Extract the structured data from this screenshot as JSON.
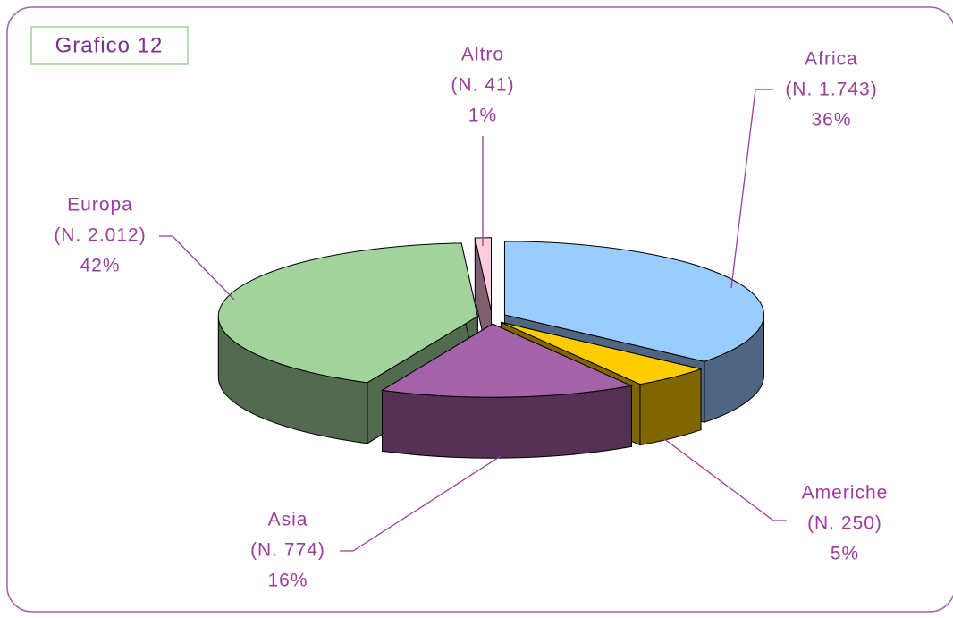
{
  "chart_data": {
    "type": "pie3d",
    "title": "Grafico 12",
    "categories": [
      "Africa",
      "Americhe",
      "Asia",
      "Europa",
      "Altro"
    ],
    "values": [
      36,
      5,
      16,
      42,
      1
    ],
    "value_labels": [
      "36%",
      "5%",
      "16%",
      "42%",
      "1%"
    ],
    "counts": [
      1743,
      250,
      774,
      2012,
      41
    ],
    "count_labels": [
      "(N. 1.743)",
      "(N. 250)",
      "(N. 774)",
      "(N. 2.012)",
      "(N. 41)"
    ],
    "colors": [
      "#99ccff",
      "#ffcc00",
      "#a463a8",
      "#a3d39c",
      "#ffccdd"
    ],
    "side_colors": [
      "#4f6582",
      "#806600",
      "#553155",
      "#526b4e",
      "#806070"
    ]
  }
}
